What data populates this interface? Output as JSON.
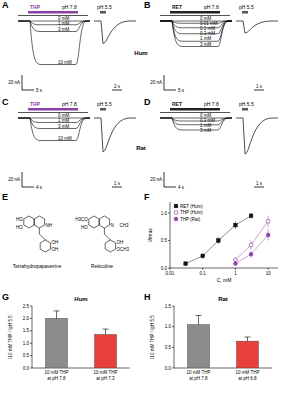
{
  "panel_labels": [
    "A",
    "B",
    "C",
    "D",
    "E",
    "F",
    "G",
    "H"
  ],
  "row_labels": [
    "Hum",
    "Rat"
  ],
  "traces": [
    {
      "drug": "THP",
      "drug_color": "#8e3fa6",
      "condition": "pH 7.8",
      "test": "pH 5.5",
      "scale_current": 20,
      "scale_current_label": "20 nA",
      "time_label": "5 s",
      "test_time_label": "2 s",
      "records": [
        {
          "label": "0 mM",
          "peak": 0
        },
        {
          "label": "1 mM",
          "peak": 5
        },
        {
          "label": "3 mM",
          "peak": 14
        },
        {
          "label": "10 mM",
          "peak": 58
        }
      ],
      "test_peak": 30
    },
    {
      "drug": "RET",
      "drug_color": "#222222",
      "condition": "pH 7.8",
      "test": "pH 5.5",
      "scale_current": 20,
      "scale_current_label": "20 nA",
      "time_label": "5 s",
      "test_time_label": "1 s",
      "records": [
        {
          "label": "0 mM",
          "peak": 0
        },
        {
          "label": "0.01 mM",
          "peak": 3
        },
        {
          "label": "0.1 mM",
          "peak": 9
        },
        {
          "label": "0.3 mM",
          "peak": 17
        },
        {
          "label": "1 mM",
          "peak": 27
        },
        {
          "label": "3 mM",
          "peak": 34
        }
      ],
      "test_peak": 16
    },
    {
      "drug": "THP",
      "drug_color": "#8e3fa6",
      "condition": "pH 7.8",
      "test": "pH 5.5",
      "scale_current": 20,
      "scale_current_label": "20 nA",
      "time_label": "4 s",
      "test_time_label": "1 s",
      "records": [
        {
          "label": "0 mM",
          "peak": 0
        },
        {
          "label": "1 mM",
          "peak": 6
        },
        {
          "label": "3 mM",
          "peak": 14
        },
        {
          "label": "10 mM",
          "peak": 30
        }
      ],
      "test_peak": 45
    },
    {
      "drug": "RET",
      "drug_color": "#222222",
      "condition": "pH 7.8",
      "test": "pH 5.5",
      "scale_current": 20,
      "scale_current_label": "20 nA",
      "time_label": "4 s",
      "test_time_label": "1 s",
      "records": [
        {
          "label": "0 mM",
          "peak": 0
        },
        {
          "label": "0.3 mM",
          "peak": 4
        },
        {
          "label": "1 mM",
          "peak": 9
        },
        {
          "label": "3 mM",
          "peak": 16
        }
      ],
      "test_peak": 48
    }
  ],
  "structures": [
    {
      "name": "Tetrahydropapaverine",
      "atoms": [
        "HO",
        "HO",
        "NH",
        "OH",
        "OH"
      ]
    },
    {
      "name": "Reticuline",
      "atoms": [
        "H3CO",
        "HO",
        "N",
        "CH3",
        "OH",
        "OCH3"
      ]
    }
  ],
  "chart_data": [
    {
      "type": "line",
      "x_label": "C, mM",
      "y_label": "I/Imax",
      "log": "x",
      "legend": "upper left",
      "xlim": [
        0.01,
        20
      ],
      "xticks": [
        0.01,
        0.1,
        1,
        10
      ],
      "ylim": [
        0,
        1.2
      ],
      "yticks": [
        {
          "value": 0,
          "label": "0.0"
        },
        {
          "value": 0.5,
          "label": "0.5"
        },
        {
          "value": 1,
          "label": "1.0"
        }
      ],
      "series": [
        {
          "name": "RET (Hum)",
          "color": "#111111",
          "marker": "square",
          "line_style": "solid",
          "x": [
            0.03,
            0.1,
            0.3,
            1,
            3
          ],
          "values": [
            0.08,
            0.22,
            0.5,
            0.78,
            0.95
          ],
          "errors": [
            0.03,
            0.05,
            0.06,
            0.07,
            0.05
          ]
        },
        {
          "name": "THP (Hum)",
          "color": "#8e3fa6",
          "marker": "circle-open",
          "line_style": "solid",
          "x": [
            1,
            3,
            10
          ],
          "values": [
            0.15,
            0.42,
            0.85
          ],
          "errors": [
            0.04,
            0.08,
            0.1
          ]
        },
        {
          "name": "THP (Rat)",
          "color": "#8e3fa6",
          "marker": "circle",
          "line_style": "solid",
          "x": [
            1,
            3,
            10
          ],
          "values": [
            0.08,
            0.25,
            0.6
          ],
          "errors": [
            0.03,
            0.06,
            0.1
          ]
        }
      ]
    },
    {
      "type": "bar",
      "title": "Hum",
      "y_label": "I10 mM THP / IpH 5.5",
      "categories": [
        "10 mM THP at pH 7.8",
        "10 mM THP at pH 7.3"
      ],
      "values": [
        2.0,
        1.35
      ],
      "errors": [
        0.3,
        0.22
      ],
      "colors": [
        "#8c8c8c",
        "#e8413c"
      ],
      "ylim": [
        0,
        2.5
      ],
      "yticks": [
        {
          "value": 0,
          "label": "0.0"
        },
        {
          "value": 0.5,
          "label": "0.5"
        },
        {
          "value": 1,
          "label": "1.0"
        },
        {
          "value": 1.5,
          "label": "1.5"
        },
        {
          "value": 2,
          "label": "2.0"
        },
        {
          "value": 2.5,
          "label": "2.5"
        }
      ]
    },
    {
      "type": "bar",
      "title": "Rat",
      "y_label": "I10 mM THP / IpH 5.5",
      "categories": [
        "10 mM THP at pH 7.8",
        "10 mM THP at pH 6.8"
      ],
      "values": [
        1.05,
        0.65
      ],
      "errors": [
        0.22,
        0.1
      ],
      "colors": [
        "#8c8c8c",
        "#e8413c"
      ],
      "ylim": [
        0,
        1.5
      ],
      "yticks": [
        {
          "value": 0,
          "label": "0.0"
        },
        {
          "value": 0.5,
          "label": "0.5"
        },
        {
          "value": 1,
          "label": "1.0"
        },
        {
          "value": 1.5,
          "label": "1.5"
        }
      ]
    }
  ]
}
